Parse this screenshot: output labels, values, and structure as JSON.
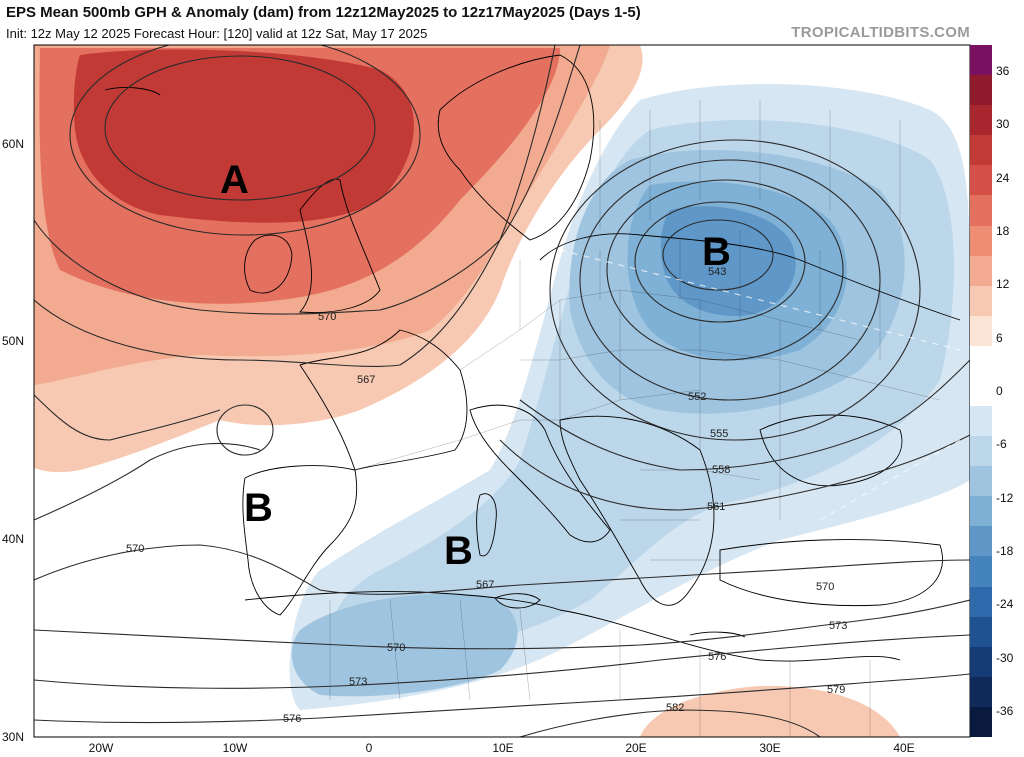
{
  "header": {
    "title": "EPS Mean 500mb GPH & Anomaly (dam) from 12z12May2025 to 12z17May2025 (Days 1-5)",
    "subtitle": "Init: 12z May 12 2025   Forecast Hour: [120]   valid at 12z Sat, May 17 2025",
    "brand": "TROPICALTIDBITS.COM"
  },
  "map": {
    "region": "Europe / North Atlantic",
    "lat_labels": [
      "60N",
      "50N",
      "40N",
      "30N"
    ],
    "lon_labels": [
      "20W",
      "10W",
      "0",
      "10E",
      "20E",
      "30E",
      "40E"
    ],
    "annotations": [
      {
        "text": "A",
        "type": "ridge"
      },
      {
        "text": "B",
        "type": "trough-north"
      },
      {
        "text": "B",
        "type": "trough-iberia"
      },
      {
        "text": "B",
        "type": "trough-mediterranean"
      }
    ],
    "contour_labels": [
      "570",
      "567",
      "543",
      "552",
      "555",
      "558",
      "561",
      "570",
      "567",
      "570",
      "573",
      "576",
      "573",
      "576",
      "579",
      "582",
      "570"
    ],
    "colors": {
      "land_border": "#000000",
      "contour": "#333333",
      "positive_anomaly": "#d6504a",
      "negative_anomaly": "#3a7bbf"
    }
  },
  "colorbar": {
    "labels": [
      "36",
      "30",
      "24",
      "18",
      "12",
      "6",
      "0",
      "-6",
      "-12",
      "-18",
      "-24",
      "-30",
      "-36"
    ],
    "segments": [
      "#7a1060",
      "#8e1a2c",
      "#a8272e",
      "#c23a35",
      "#d6504a",
      "#e4705f",
      "#ec8d74",
      "#f2ab90",
      "#f7c9b2",
      "#fbe4d6",
      "#ffffff",
      "#ffffff",
      "#d6e6f2",
      "#bcd6ea",
      "#9fc4e0",
      "#7fb0d5",
      "#5f98c8",
      "#4583bd",
      "#2e6aab",
      "#1f5290",
      "#163c75",
      "#0f2a58",
      "#0a1a3e"
    ]
  }
}
